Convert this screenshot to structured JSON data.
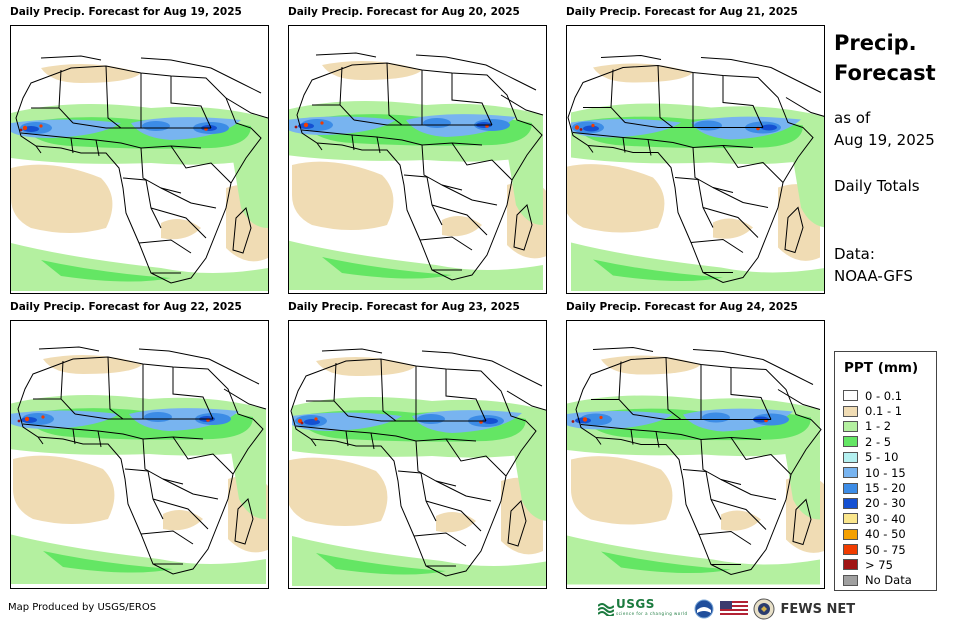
{
  "panels": [
    {
      "title": "Daily Precip. Forecast for Aug 19, 2025"
    },
    {
      "title": "Daily Precip. Forecast for Aug 20, 2025"
    },
    {
      "title": "Daily Precip. Forecast for Aug 21, 2025"
    },
    {
      "title": "Daily Precip. Forecast for Aug 22, 2025"
    },
    {
      "title": "Daily Precip. Forecast for Aug 23, 2025"
    },
    {
      "title": "Daily Precip. Forecast for Aug 24, 2025"
    }
  ],
  "sidebar": {
    "title_line1": "Precip.",
    "title_line2": "Forecast",
    "asof_line1": "as of",
    "asof_line2": "Aug 19, 2025",
    "totals": "Daily Totals",
    "data_line1": "Data:",
    "data_line2": "NOAA-GFS"
  },
  "legend": {
    "title": "PPT (mm)",
    "items": [
      {
        "label": "0 - 0.1",
        "color": "#ffffff"
      },
      {
        "label": "0.1 - 1",
        "color": "#f0dcb4"
      },
      {
        "label": "1 - 2",
        "color": "#b4f0a0"
      },
      {
        "label": "2 - 5",
        "color": "#64e664"
      },
      {
        "label": "5 - 10",
        "color": "#b4f0f0"
      },
      {
        "label": "10 - 15",
        "color": "#78b4f0"
      },
      {
        "label": "15 - 20",
        "color": "#3c8ce6"
      },
      {
        "label": "20 - 30",
        "color": "#1450d2"
      },
      {
        "label": "30 - 40",
        "color": "#fae68c"
      },
      {
        "label": "40 - 50",
        "color": "#f5a000"
      },
      {
        "label": "50 - 75",
        "color": "#f03c00"
      },
      {
        "label": "> 75",
        "color": "#a01414"
      },
      {
        "label": "No Data",
        "color": "#a0a0a0"
      }
    ]
  },
  "footer": {
    "credit": "Map Produced by USGS/EROS",
    "usgs_logo": "USGS",
    "usgs_tagline": "science for a changing world",
    "fews_logo": "FEWS NET"
  }
}
